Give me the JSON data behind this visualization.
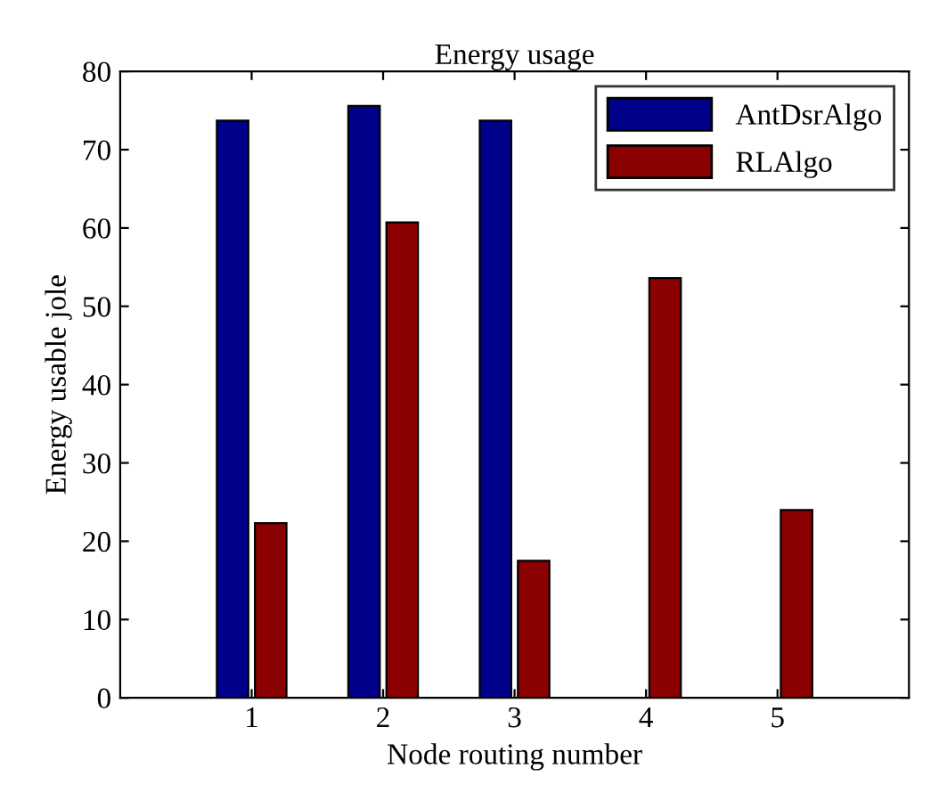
{
  "chart_data": {
    "type": "bar",
    "title": "Energy usage",
    "xlabel": "Node routing number",
    "ylabel": "Energy usable jole",
    "categories": [
      "1",
      "2",
      "3",
      "4",
      "5"
    ],
    "series": [
      {
        "name": "AntDsrAlgo",
        "color": "#00008b",
        "values": [
          73.7,
          75.6,
          73.7,
          null,
          null
        ]
      },
      {
        "name": "RLAlgo",
        "color": "#8b0000",
        "values": [
          22.3,
          60.7,
          17.5,
          53.6,
          24.0
        ]
      }
    ],
    "ylim": [
      0,
      80
    ],
    "yticks": [
      0,
      10,
      20,
      30,
      40,
      50,
      60,
      70,
      80
    ],
    "grid": false,
    "legend": "top right"
  }
}
